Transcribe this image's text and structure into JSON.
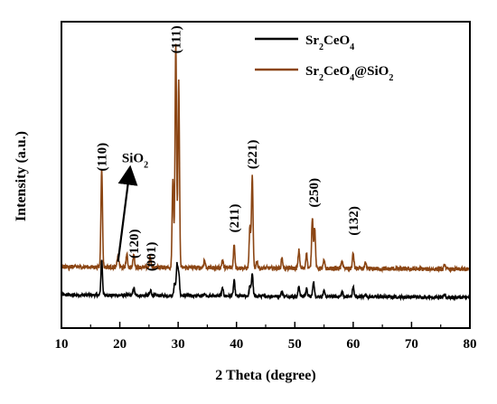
{
  "chart_data": {
    "type": "line",
    "xlabel": "2 Theta (degree)",
    "ylabel": "Intensity (a.u.)",
    "xlim": [
      10,
      80
    ],
    "xticks": [
      10,
      20,
      30,
      40,
      50,
      60,
      70,
      80
    ],
    "y_ticks_shown": false,
    "grid": false,
    "legend_position": "top-right",
    "series": [
      {
        "name": "Sr2CeO4",
        "color": "#000000",
        "baseline": 0.13,
        "noise": 0.006,
        "peaks": [
          {
            "x": 16.9,
            "h": 0.14
          },
          {
            "x": 22.4,
            "h": 0.03
          },
          {
            "x": 25.3,
            "h": 0.02
          },
          {
            "x": 29.4,
            "h": 0.05
          },
          {
            "x": 29.8,
            "h": 0.12
          },
          {
            "x": 30.1,
            "h": 0.09
          },
          {
            "x": 34.5,
            "h": 0.01
          },
          {
            "x": 37.6,
            "h": 0.03
          },
          {
            "x": 39.6,
            "h": 0.06
          },
          {
            "x": 42.3,
            "h": 0.04
          },
          {
            "x": 42.7,
            "h": 0.09
          },
          {
            "x": 47.8,
            "h": 0.02
          },
          {
            "x": 50.7,
            "h": 0.04
          },
          {
            "x": 52.0,
            "h": 0.03
          },
          {
            "x": 53.2,
            "h": 0.06
          },
          {
            "x": 55.0,
            "h": 0.02
          },
          {
            "x": 58.1,
            "h": 0.02
          },
          {
            "x": 60.0,
            "h": 0.04
          },
          {
            "x": 62.1,
            "h": 0.01
          },
          {
            "x": 75.7,
            "h": 0.01
          }
        ]
      },
      {
        "name": "Sr2CeO4@SiO2",
        "color": "#8b4513",
        "baseline": 0.24,
        "noise": 0.008,
        "peaks": [
          {
            "x": 16.9,
            "h": 0.39
          },
          {
            "x": 19.7,
            "h": 0.05
          },
          {
            "x": 21.2,
            "h": 0.05
          },
          {
            "x": 22.4,
            "h": 0.05
          },
          {
            "x": 25.2,
            "h": 0.04
          },
          {
            "x": 29.1,
            "h": 0.35
          },
          {
            "x": 29.6,
            "h": 0.88
          },
          {
            "x": 30.1,
            "h": 0.73
          },
          {
            "x": 34.5,
            "h": 0.03
          },
          {
            "x": 37.6,
            "h": 0.03
          },
          {
            "x": 39.6,
            "h": 0.09
          },
          {
            "x": 42.3,
            "h": 0.16
          },
          {
            "x": 42.7,
            "h": 0.36
          },
          {
            "x": 43.5,
            "h": 0.03
          },
          {
            "x": 47.8,
            "h": 0.04
          },
          {
            "x": 50.7,
            "h": 0.07
          },
          {
            "x": 52.0,
            "h": 0.06
          },
          {
            "x": 53.0,
            "h": 0.2
          },
          {
            "x": 53.4,
            "h": 0.16
          },
          {
            "x": 55.0,
            "h": 0.03
          },
          {
            "x": 58.1,
            "h": 0.03
          },
          {
            "x": 60.0,
            "h": 0.06
          },
          {
            "x": 62.1,
            "h": 0.02
          },
          {
            "x": 75.7,
            "h": 0.02
          }
        ]
      }
    ],
    "annotations": [
      {
        "text": "(110)",
        "x": 16.9,
        "y": 0.67
      },
      {
        "text": "(120)",
        "x": 22.4,
        "y": 0.33
      },
      {
        "text": "(001)",
        "x": 25.3,
        "y": 0.28
      },
      {
        "text": "(111)",
        "x": 29.6,
        "y": 1.13
      },
      {
        "text": "(211)",
        "x": 39.6,
        "y": 0.43
      },
      {
        "text": "(221)",
        "x": 42.7,
        "y": 0.68
      },
      {
        "text": "(250)",
        "x": 53.2,
        "y": 0.53
      },
      {
        "text": "(132)",
        "x": 60.0,
        "y": 0.42
      }
    ],
    "arrow_label": {
      "base": "SiO",
      "sub": "2",
      "x_from": 19.7,
      "y_from": 0.26,
      "x_to": 21.6,
      "y_to": 0.6
    }
  }
}
